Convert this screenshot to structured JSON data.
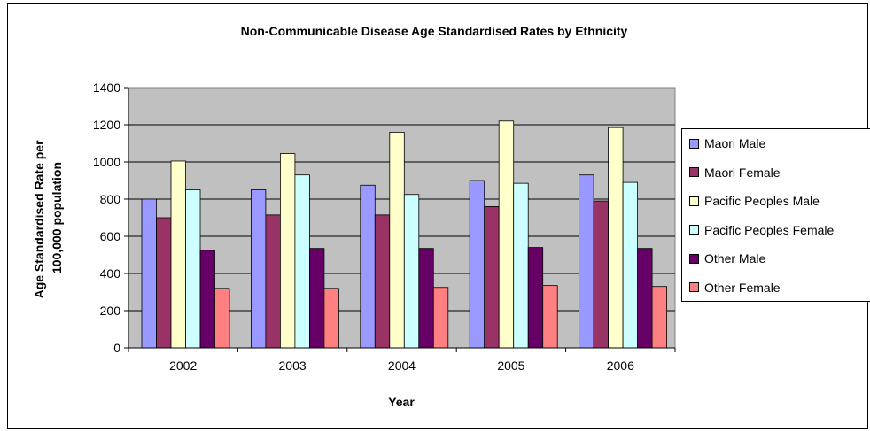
{
  "chart_data": {
    "type": "bar",
    "title": "Non-Communicable Disease Age Standardised Rates by Ethnicity",
    "xlabel": "Year",
    "ylabel": [
      "Age Standardised Rate per",
      "100,000 population"
    ],
    "categories": [
      "2002",
      "2003",
      "2004",
      "2005",
      "2006"
    ],
    "ylim": [
      0,
      1400
    ],
    "yticks": [
      "0",
      "200",
      "400",
      "600",
      "800",
      "1000",
      "1200",
      "1400"
    ],
    "grid": true,
    "legend_position": "right",
    "series": [
      {
        "name": "Maori Male",
        "color": "#9999ff",
        "values": [
          800,
          850,
          875,
          900,
          930
        ]
      },
      {
        "name": "Maori Female",
        "color": "#993366",
        "values": [
          700,
          715,
          715,
          760,
          790
        ]
      },
      {
        "name": "Pacific Peoples Male",
        "color": "#ffffcc",
        "values": [
          1005,
          1045,
          1160,
          1220,
          1185
        ]
      },
      {
        "name": "Pacific Peoples Female",
        "color": "#ccffff",
        "values": [
          850,
          930,
          825,
          885,
          890
        ]
      },
      {
        "name": "Other Male",
        "color": "#660066",
        "values": [
          525,
          535,
          535,
          540,
          535
        ]
      },
      {
        "name": "Other Female",
        "color": "#ff8080",
        "values": [
          320,
          320,
          325,
          335,
          330
        ]
      }
    ],
    "plot_background": "#c0c0c0"
  }
}
